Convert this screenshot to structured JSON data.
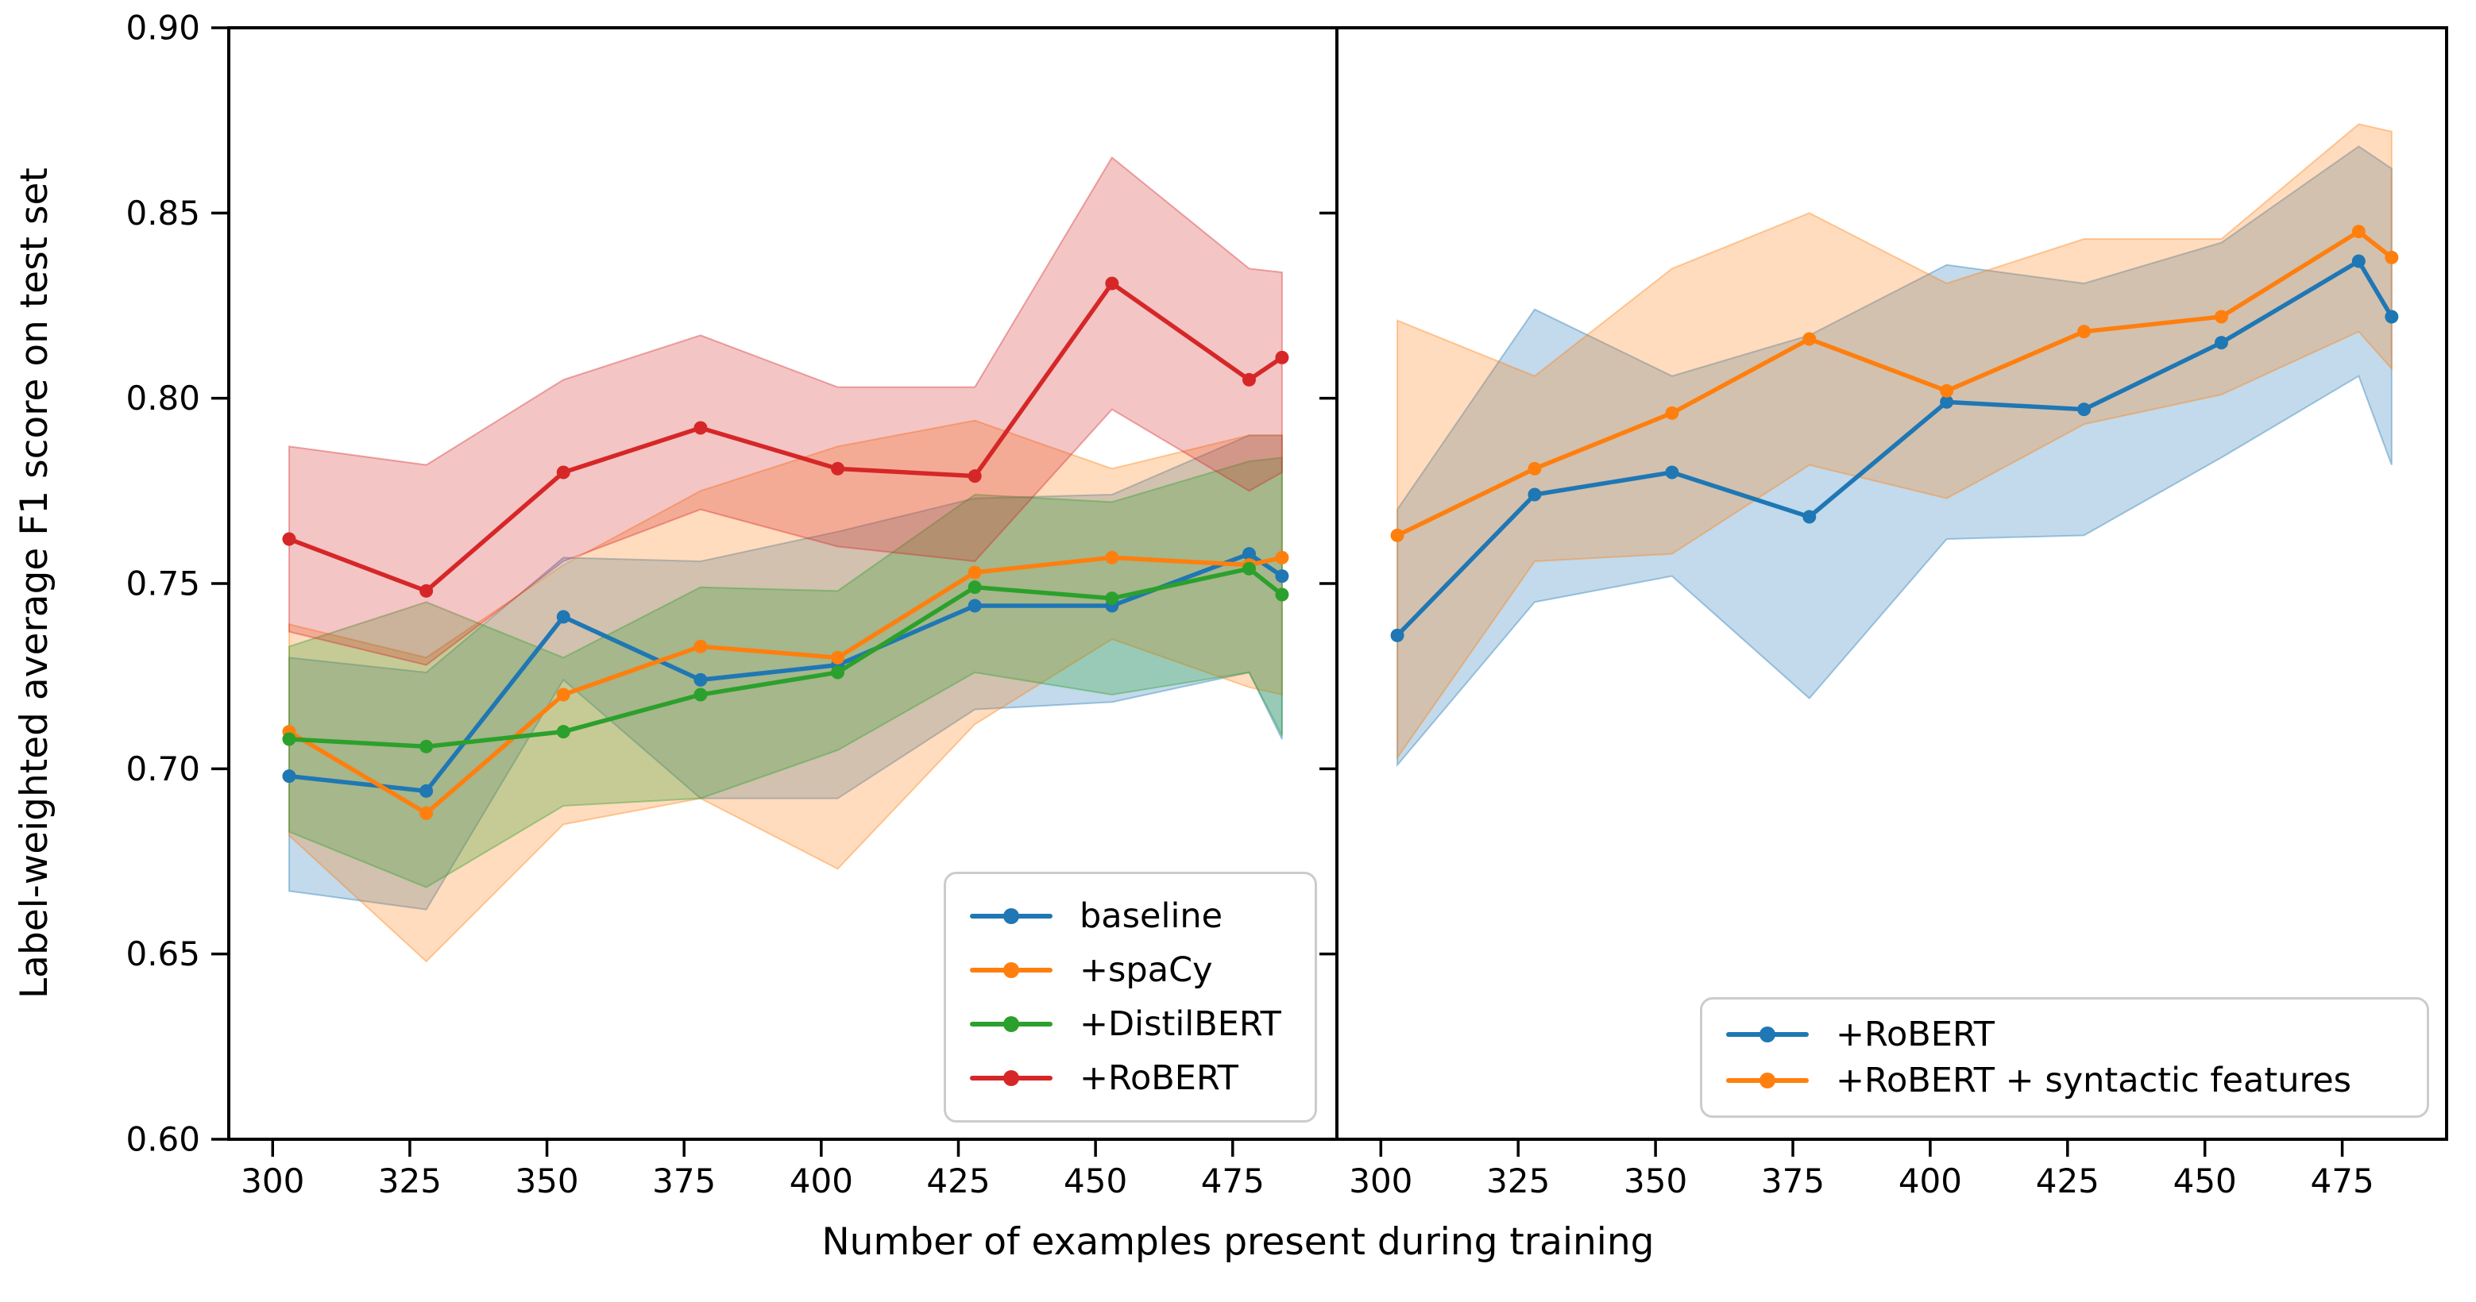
{
  "figure": {
    "xlabel": "Number of examples present during training",
    "ylabel": "Label-weighted average F1 score on test set",
    "background_color": "#ffffff",
    "spine_color": "#000000",
    "text_color": "#000000",
    "legend_border_color": "#cccccc"
  },
  "axes": {
    "ylim": [
      0.6,
      0.9
    ],
    "ytick_values": [
      0.6,
      0.65,
      0.7,
      0.75,
      0.8,
      0.85,
      0.9
    ],
    "ytick_labels": [
      "0.60",
      "0.65",
      "0.70",
      "0.75",
      "0.80",
      "0.85",
      "0.90"
    ],
    "xlim": [
      292,
      494
    ],
    "xtick_values": [
      300,
      325,
      350,
      375,
      400,
      425,
      450,
      475
    ],
    "xtick_labels": [
      "300",
      "325",
      "350",
      "375",
      "400",
      "425",
      "450",
      "475"
    ]
  },
  "chart_data": [
    {
      "type": "line",
      "panel": "left",
      "title": "",
      "xlabel_shared": "Number of examples present during training",
      "ylabel": "Label-weighted average F1 score on test set",
      "x": [
        303,
        328,
        353,
        378,
        403,
        428,
        453,
        478,
        484
      ],
      "ylim": [
        0.6,
        0.9
      ],
      "grid": false,
      "legend_position": "lower right",
      "series": [
        {
          "name": "baseline",
          "color": "#1f77b4",
          "values": [
            0.698,
            0.694,
            0.741,
            0.724,
            0.728,
            0.744,
            0.744,
            0.758,
            0.752
          ],
          "band_lower": [
            0.667,
            0.662,
            0.724,
            0.692,
            0.692,
            0.716,
            0.718,
            0.726,
            0.708
          ],
          "band_upper": [
            0.73,
            0.726,
            0.757,
            0.756,
            0.764,
            0.773,
            0.774,
            0.79,
            0.79
          ]
        },
        {
          "name": "+spaCy",
          "color": "#ff7f0e",
          "values": [
            0.71,
            0.688,
            0.72,
            0.733,
            0.73,
            0.753,
            0.757,
            0.755,
            0.757
          ],
          "band_lower": [
            0.682,
            0.648,
            0.685,
            0.692,
            0.673,
            0.712,
            0.735,
            0.722,
            0.72
          ],
          "band_upper": [
            0.739,
            0.73,
            0.755,
            0.775,
            0.787,
            0.794,
            0.781,
            0.79,
            0.79
          ]
        },
        {
          "name": "+DistilBERT",
          "color": "#2ca02c",
          "values": [
            0.708,
            0.706,
            0.71,
            0.72,
            0.726,
            0.749,
            0.746,
            0.754,
            0.747
          ],
          "band_lower": [
            0.683,
            0.668,
            0.69,
            0.692,
            0.705,
            0.726,
            0.72,
            0.726,
            0.709
          ],
          "band_upper": [
            0.733,
            0.745,
            0.73,
            0.749,
            0.748,
            0.774,
            0.772,
            0.783,
            0.784
          ]
        },
        {
          "name": "+RoBERT",
          "color": "#d62728",
          "values": [
            0.762,
            0.748,
            0.78,
            0.792,
            0.781,
            0.779,
            0.831,
            0.805,
            0.811
          ],
          "band_lower": [
            0.737,
            0.728,
            0.756,
            0.77,
            0.76,
            0.756,
            0.797,
            0.775,
            0.78
          ],
          "band_upper": [
            0.787,
            0.782,
            0.805,
            0.817,
            0.803,
            0.803,
            0.865,
            0.835,
            0.834
          ]
        }
      ]
    },
    {
      "type": "line",
      "panel": "right",
      "title": "",
      "x": [
        303,
        328,
        353,
        378,
        403,
        428,
        453,
        478,
        484
      ],
      "ylim": [
        0.6,
        0.9
      ],
      "grid": false,
      "legend_position": "lower right",
      "series": [
        {
          "name": "+RoBERT",
          "color": "#1f77b4",
          "values": [
            0.736,
            0.774,
            0.78,
            0.768,
            0.799,
            0.797,
            0.815,
            0.837,
            0.822
          ],
          "band_lower": [
            0.701,
            0.745,
            0.752,
            0.719,
            0.762,
            0.763,
            0.784,
            0.806,
            0.782
          ],
          "band_upper": [
            0.77,
            0.824,
            0.806,
            0.817,
            0.836,
            0.831,
            0.842,
            0.868,
            0.862
          ]
        },
        {
          "name": "+RoBERT + syntactic features",
          "color": "#ff7f0e",
          "values": [
            0.763,
            0.781,
            0.796,
            0.816,
            0.802,
            0.818,
            0.822,
            0.845,
            0.838
          ],
          "band_lower": [
            0.703,
            0.756,
            0.758,
            0.782,
            0.773,
            0.793,
            0.801,
            0.818,
            0.808
          ],
          "band_upper": [
            0.821,
            0.806,
            0.835,
            0.85,
            0.831,
            0.843,
            0.843,
            0.874,
            0.872
          ]
        }
      ]
    }
  ]
}
